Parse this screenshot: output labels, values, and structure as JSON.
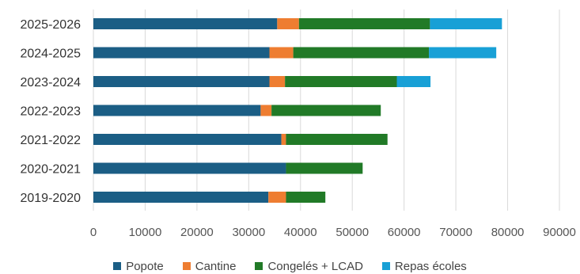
{
  "chart_data": {
    "type": "bar",
    "orientation": "horizontal",
    "stacked": true,
    "title": "",
    "xlabel": "",
    "ylabel": "",
    "categories": [
      "2019-2020",
      "2020-2021",
      "2021-2022",
      "2022-2023",
      "2023-2024",
      "2024-2025",
      "2025-2026"
    ],
    "series": [
      {
        "name": "Popote",
        "color": "#1b5e85",
        "values": [
          33800,
          37200,
          36300,
          32300,
          34000,
          34000,
          35500
        ]
      },
      {
        "name": "Cantine",
        "color": "#ee7d31",
        "values": [
          3400,
          0,
          900,
          2100,
          3000,
          4600,
          4200
        ]
      },
      {
        "name": "Congelés + LCAD",
        "color": "#217a27",
        "values": [
          7600,
          14800,
          19600,
          21100,
          21600,
          26200,
          25300
        ]
      },
      {
        "name": "Repas écoles",
        "color": "#18a0d6",
        "values": [
          0,
          0,
          0,
          0,
          6500,
          13000,
          13900
        ]
      }
    ],
    "xlim": [
      0,
      90000
    ],
    "x_ticks": [
      0,
      10000,
      20000,
      30000,
      40000,
      50000,
      60000,
      70000,
      80000,
      90000
    ],
    "grid": true,
    "legend_position": "bottom"
  }
}
